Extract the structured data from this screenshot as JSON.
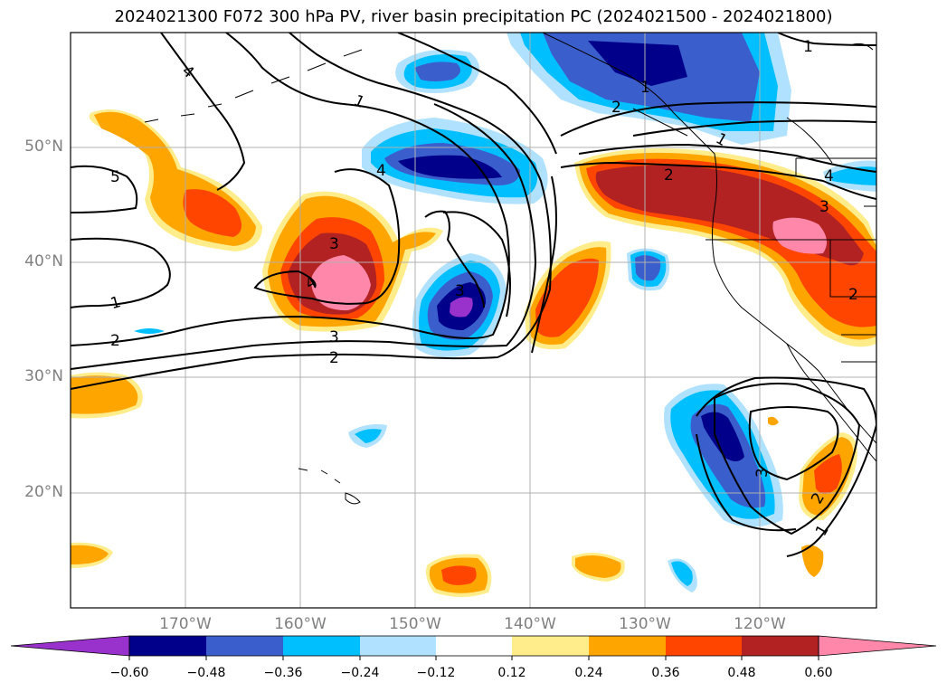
{
  "title": "2024021300 F072 300 hPa PV, river basin precipitation PC (2024021500 - 2024021800)",
  "lat_labels": [
    "50°N",
    "40°N",
    "30°N",
    "20°N"
  ],
  "lon_labels": [
    "170°W",
    "160°W",
    "150°W",
    "140°W",
    "130°W",
    "120°W"
  ],
  "contour_labels": [
    "5",
    "4",
    "1",
    "1",
    "2",
    "3",
    "2",
    "4",
    "3",
    "4",
    "3",
    "2",
    "1",
    "2",
    "3",
    "1",
    "4",
    "2",
    "1",
    "2",
    "3",
    "1"
  ],
  "colorbar": {
    "ticks": [
      "−0.60",
      "−0.48",
      "−0.36",
      "−0.24",
      "−0.12",
      "0.12",
      "0.24",
      "0.36",
      "0.48",
      "0.60"
    ],
    "colors": [
      "#9932cc",
      "#00008b",
      "#3a5fcd",
      "#00bfff",
      "#b0e2ff",
      "#ffffff",
      "#ffec8b",
      "#ffa500",
      "#ff4500",
      "#b22222",
      "#ff88aa"
    ]
  }
}
